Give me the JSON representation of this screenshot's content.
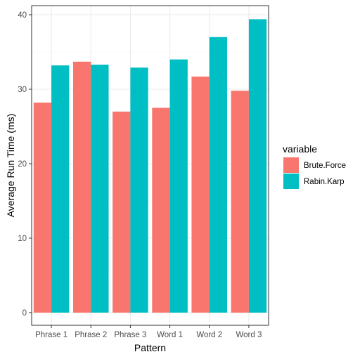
{
  "chart_data": {
    "type": "bar",
    "categories": [
      "Phrase 1",
      "Phrase 2",
      "Phrase 3",
      "Word 1",
      "Word 2",
      "Word 3"
    ],
    "series": [
      {
        "name": "Brute.Force",
        "values": [
          28.2,
          33.7,
          27.0,
          27.5,
          31.7,
          29.8
        ],
        "color": "#F8766D"
      },
      {
        "name": "Rabin.Karp",
        "values": [
          33.2,
          33.3,
          32.9,
          34.0,
          37.0,
          39.4
        ],
        "color": "#00BFC4"
      }
    ],
    "title": "",
    "xlabel": "Pattern",
    "ylabel": "Average Run Time (ms)",
    "ylim": [
      0,
      41.1
    ],
    "yticks": [
      0,
      10,
      20,
      30,
      40
    ],
    "grid": true,
    "legend": {
      "title": "variable",
      "position": "right"
    }
  }
}
